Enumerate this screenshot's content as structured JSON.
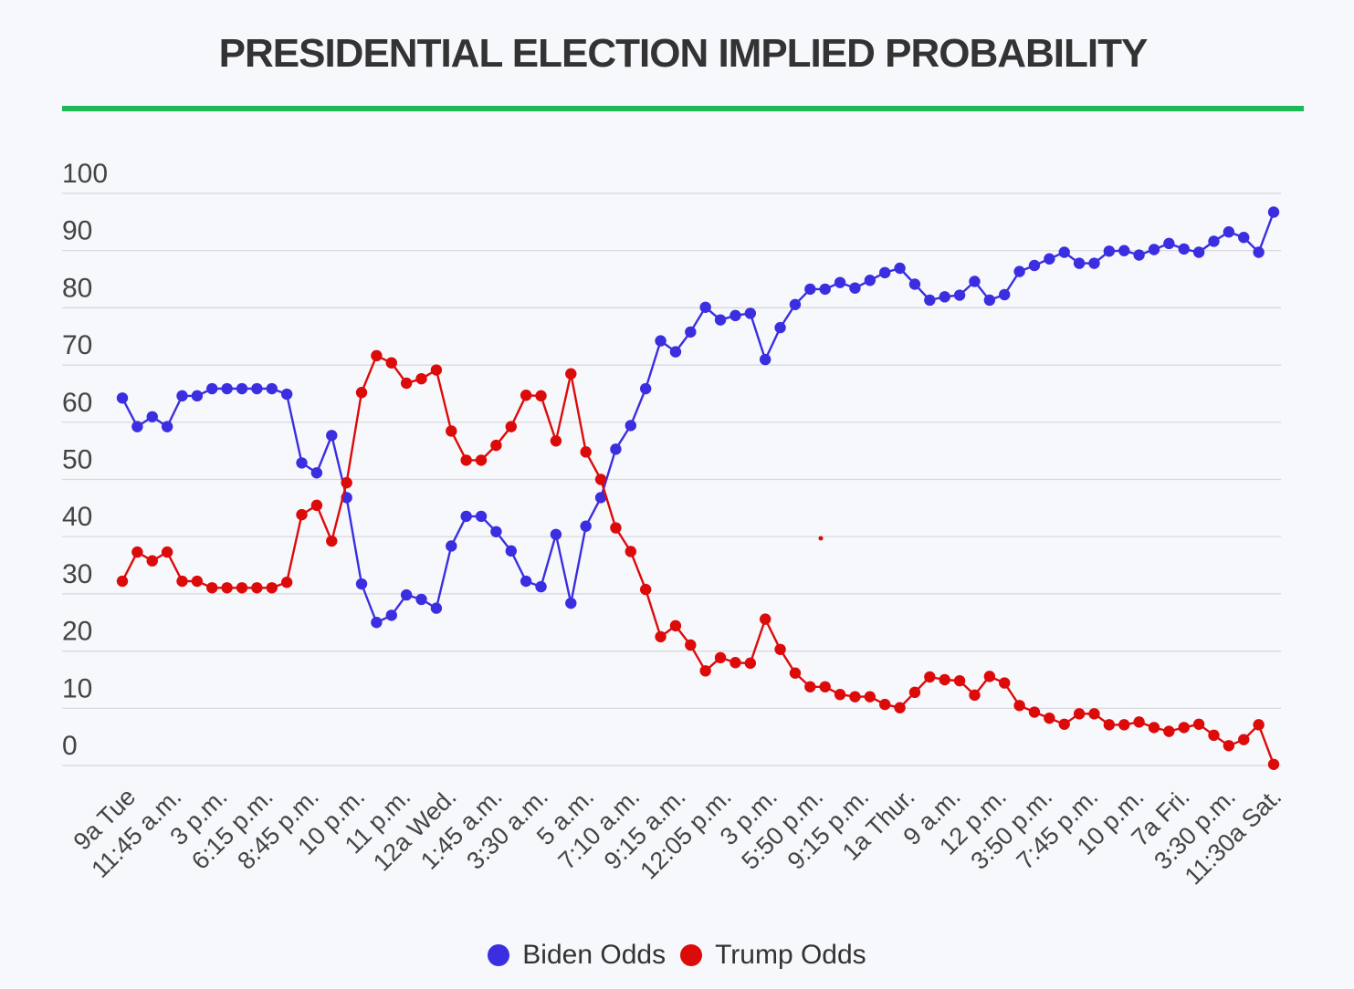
{
  "chart_data": {
    "type": "line",
    "title": "PRESIDENTIAL ELECTION IMPLIED PROBABILITY",
    "xlabel": "",
    "ylabel": "",
    "ylim": [
      -4,
      100
    ],
    "yticks": [
      0,
      10,
      20,
      30,
      40,
      50,
      60,
      70,
      80,
      90,
      100
    ],
    "grid": true,
    "legend": "bottom-center",
    "title_rule_color": "#1dbb55",
    "x_tick_labels": [
      "9a Tue",
      "11:45 a.m.",
      "3 p.m.",
      "6:15 p.m.",
      "8:45 p.m.",
      "10 p.m.",
      "11 p.m.",
      "12a Wed.",
      "1:45 a.m.",
      "3:30 a.m.",
      "5 a.m.",
      "7:10 a.m.",
      "9:15 a.m.",
      "12:05 p.m.",
      "3 p.m.",
      "5:50 p.m.",
      "9:15 p.m.",
      "1a Thur.",
      "9 a.m.",
      "12 p.m.",
      "3:50 p.m.",
      "7:45 p.m.",
      "10 p.m.",
      "7a Fri.",
      "3:30 p.m.",
      "11:30a Sat."
    ],
    "series": [
      {
        "name": "Biden Odds",
        "color": "#3a2ee0",
        "values": [
          62.8,
          57.6,
          59.4,
          57.6,
          63.2,
          63.2,
          64.5,
          64.5,
          64.5,
          64.5,
          64.5,
          63.5,
          51.0,
          49.2,
          56.0,
          44.7,
          29.0,
          22.0,
          23.3,
          27.0,
          26.2,
          24.6,
          35.9,
          41.3,
          41.3,
          38.5,
          35.0,
          29.5,
          28.5,
          38.0,
          25.5,
          39.5,
          44.7,
          53.5,
          57.8,
          64.5,
          73.2,
          71.2,
          74.8,
          79.3,
          77.0,
          77.8,
          78.2,
          69.8,
          75.6,
          79.8,
          82.6,
          82.6,
          83.8,
          82.8,
          84.2,
          85.6,
          86.4,
          83.5,
          80.6,
          81.2,
          81.5,
          84.0,
          80.6,
          81.6,
          85.8,
          86.9,
          88.1,
          89.3,
          87.3,
          87.3,
          89.5,
          89.6,
          88.8,
          89.8,
          90.9,
          89.9,
          89.3,
          91.3,
          93.0,
          92.0,
          89.3,
          96.6
        ]
      },
      {
        "name": "Trump Odds",
        "color": "#dd0a0a",
        "values": [
          29.5,
          34.8,
          33.2,
          34.8,
          29.5,
          29.5,
          28.3,
          28.3,
          28.3,
          28.3,
          28.3,
          29.3,
          41.6,
          43.3,
          36.8,
          47.4,
          63.8,
          70.5,
          69.2,
          65.5,
          66.3,
          67.9,
          56.8,
          51.5,
          51.5,
          54.2,
          57.6,
          63.3,
          63.2,
          55.0,
          67.2,
          53.0,
          48.0,
          39.2,
          34.9,
          28.0,
          19.4,
          21.4,
          17.9,
          13.2,
          15.6,
          14.7,
          14.6,
          22.6,
          17.1,
          12.8,
          10.3,
          10.3,
          8.9,
          8.5,
          8.5,
          7.1,
          6.5,
          9.3,
          12.1,
          11.6,
          11.4,
          8.8,
          12.2,
          11.0,
          6.9,
          5.7,
          4.6,
          3.5,
          5.4,
          5.4,
          3.4,
          3.4,
          3.9,
          2.9,
          2.2,
          2.9,
          3.5,
          1.5,
          -0.4,
          0.7,
          3.4,
          -3.8
        ]
      }
    ]
  }
}
